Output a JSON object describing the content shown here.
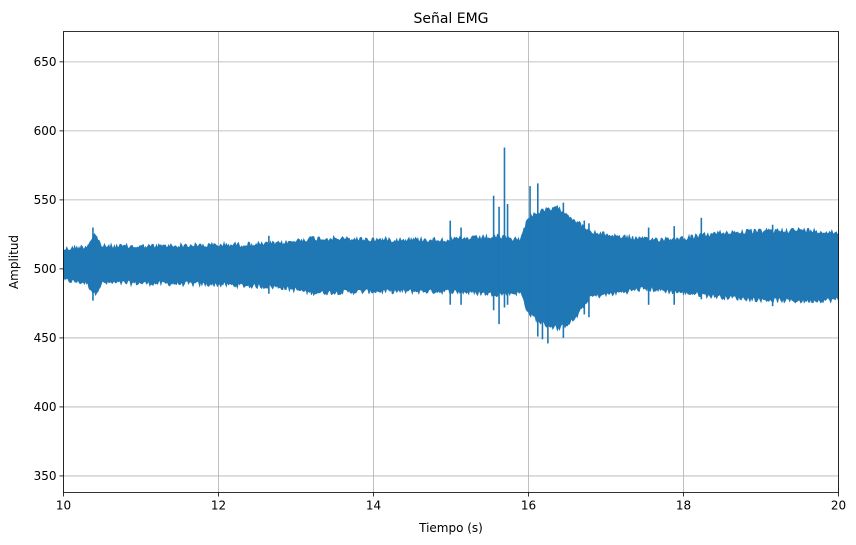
{
  "chart_data": {
    "type": "line",
    "title": "Señal EMG",
    "xlabel": "Tiempo (s)",
    "ylabel": "Amplitud",
    "xlim": [
      10,
      20
    ],
    "ylim": [
      338,
      672
    ],
    "xticks": [
      10,
      12,
      14,
      16,
      18,
      20
    ],
    "yticks": [
      350,
      400,
      450,
      500,
      550,
      600,
      650
    ],
    "xtick_labels": [
      "10",
      "12",
      "14",
      "16",
      "18",
      "20"
    ],
    "ytick_labels": [
      "350",
      "400",
      "450",
      "500",
      "550",
      "600",
      "650"
    ],
    "grid": true,
    "series": [
      {
        "color": "#1f77b4",
        "baseline": 502,
        "envelope": {
          "t": [
            10.0,
            10.3,
            10.4,
            10.5,
            11.0,
            12.0,
            12.8,
            13.2,
            14.0,
            15.0,
            15.6,
            15.9,
            16.0,
            16.2,
            16.4,
            16.6,
            16.8,
            17.5,
            18.0,
            18.5,
            19.0,
            19.5,
            20.0
          ],
          "upper": [
            516,
            518,
            527,
            518,
            518,
            519,
            520,
            524,
            523,
            523,
            525,
            523,
            540,
            544,
            546,
            537,
            528,
            523,
            524,
            528,
            529,
            530,
            528
          ],
          "lower": [
            490,
            488,
            480,
            488,
            488,
            487,
            485,
            481,
            482,
            482,
            480,
            481,
            466,
            458,
            455,
            462,
            478,
            484,
            481,
            478,
            476,
            475,
            476
          ]
        },
        "spikes": [
          {
            "t": 10.38,
            "high": 530,
            "low": 477
          },
          {
            "t": 12.65,
            "high": 524,
            "low": 482
          },
          {
            "t": 14.99,
            "high": 535,
            "low": 474
          },
          {
            "t": 15.13,
            "high": 530,
            "low": 474
          },
          {
            "t": 15.55,
            "high": 553,
            "low": 470
          },
          {
            "t": 15.62,
            "high": 545,
            "low": 460
          },
          {
            "t": 15.69,
            "high": 588,
            "low": 472
          },
          {
            "t": 15.73,
            "high": 547,
            "low": 474
          },
          {
            "t": 16.02,
            "high": 560,
            "low": 475
          },
          {
            "t": 16.12,
            "high": 562,
            "low": 451
          },
          {
            "t": 16.18,
            "high": 540,
            "low": 449
          },
          {
            "t": 16.25,
            "high": 537,
            "low": 446
          },
          {
            "t": 16.45,
            "high": 548,
            "low": 450
          },
          {
            "t": 16.72,
            "high": 535,
            "low": 467
          },
          {
            "t": 16.78,
            "high": 533,
            "low": 465
          },
          {
            "t": 17.55,
            "high": 530,
            "low": 474
          },
          {
            "t": 17.88,
            "high": 531,
            "low": 474
          },
          {
            "t": 18.23,
            "high": 537,
            "low": 478
          },
          {
            "t": 19.15,
            "high": 532,
            "low": 473
          }
        ]
      }
    ]
  }
}
